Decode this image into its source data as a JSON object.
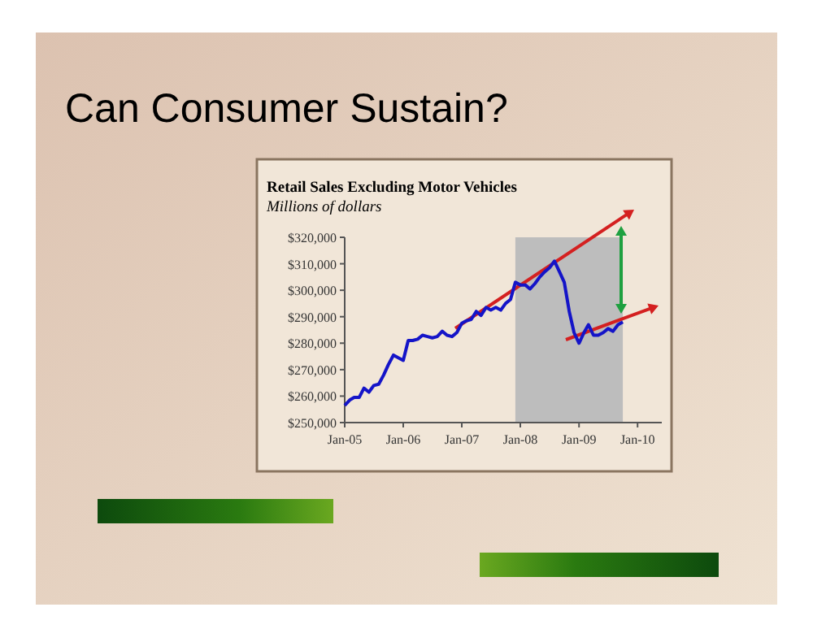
{
  "chart_data": {
    "type": "line",
    "title": "Retail Sales Excluding Motor Vehicles",
    "subtitle": "Millions of dollars",
    "annotations": [
      "Can Consumer Sustain?"
    ],
    "x": [
      "2005-01",
      "2005-02",
      "2005-03",
      "2005-04",
      "2005-05",
      "2005-06",
      "2005-07",
      "2005-08",
      "2005-09",
      "2005-10",
      "2005-11",
      "2005-12",
      "2006-01",
      "2006-02",
      "2006-03",
      "2006-04",
      "2006-05",
      "2006-06",
      "2006-07",
      "2006-08",
      "2006-09",
      "2006-10",
      "2006-11",
      "2006-12",
      "2007-01",
      "2007-02",
      "2007-03",
      "2007-04",
      "2007-05",
      "2007-06",
      "2007-07",
      "2007-08",
      "2007-09",
      "2007-10",
      "2007-11",
      "2007-12",
      "2008-01",
      "2008-02",
      "2008-03",
      "2008-04",
      "2008-05",
      "2008-06",
      "2008-07",
      "2008-08",
      "2008-09",
      "2008-10",
      "2008-11",
      "2008-12",
      "2009-01",
      "2009-02",
      "2009-03",
      "2009-04",
      "2009-05",
      "2009-06",
      "2009-07",
      "2009-08",
      "2009-09",
      "2009-10"
    ],
    "series": [
      {
        "color": "#1414c8",
        "values": [
          256500,
          258500,
          259500,
          259500,
          263000,
          261500,
          264000,
          264500,
          268000,
          272000,
          275500,
          274500,
          273500,
          281000,
          281000,
          281500,
          283000,
          282500,
          282000,
          282500,
          284500,
          283000,
          282500,
          284000,
          287500,
          288500,
          289000,
          292000,
          290500,
          293500,
          292500,
          293500,
          292500,
          295000,
          296500,
          303000,
          302000,
          302000,
          300500,
          302500,
          305000,
          307000,
          308500,
          311000,
          307000,
          303000,
          292000,
          284000,
          280000,
          284000,
          287000,
          283000,
          283000,
          284000,
          285500,
          284500,
          287000,
          288000
        ]
      }
    ],
    "xlim": [
      "2005-01",
      "2010-06"
    ],
    "xticks": [
      {
        "value": "2005-01",
        "label": "Jan-05"
      },
      {
        "value": "2006-01",
        "label": "Jan-06"
      },
      {
        "value": "2007-01",
        "label": "Jan-07"
      },
      {
        "value": "2008-01",
        "label": "Jan-08"
      },
      {
        "value": "2009-01",
        "label": "Jan-09"
      },
      {
        "value": "2010-01",
        "label": "Jan-10"
      }
    ],
    "ylim": [
      250000,
      320000
    ],
    "yticks": [
      {
        "value": 250000,
        "label": "$250,000"
      },
      {
        "value": 260000,
        "label": "$260,000"
      },
      {
        "value": 270000,
        "label": "$270,000"
      },
      {
        "value": 280000,
        "label": "$280,000"
      },
      {
        "value": 290000,
        "label": "$290,000"
      },
      {
        "value": 300000,
        "label": "$300,000"
      },
      {
        "value": 310000,
        "label": "$310,000"
      },
      {
        "value": 320000,
        "label": "$320,000"
      }
    ],
    "bands": [
      {
        "axis": "x",
        "from": "2007-12",
        "to": "2009-10",
        "color": "#bdbdbd"
      }
    ],
    "grid": false,
    "marker": "none",
    "line_style": "solid"
  }
}
